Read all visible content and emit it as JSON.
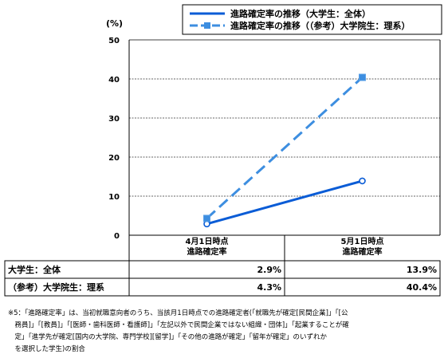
{
  "chart_data": {
    "type": "line",
    "unit_label": "(%)",
    "categories": [
      [
        "4月1日時点",
        "進路確定率"
      ],
      [
        "5月1日時点",
        "進路確定率"
      ]
    ],
    "ylim": [
      0,
      50
    ],
    "yticks": [
      0,
      10,
      20,
      30,
      40,
      50
    ],
    "grid": true,
    "legend_position": "top",
    "series": [
      {
        "name": "進路確定率の推移（大学生：全体）",
        "values": [
          2.9,
          13.9
        ],
        "color": "#0a5cd6",
        "dashed": false,
        "marker": "circle"
      },
      {
        "name": "進路確定率の推移（（参考）大学院生：理系）",
        "values": [
          4.3,
          40.4
        ],
        "color": "#3d8ee0",
        "dashed": true,
        "marker": "square"
      }
    ],
    "table": [
      {
        "label": "大学生：全体",
        "values": [
          "2.9%",
          "13.9%"
        ]
      },
      {
        "label": "（参考）大学院生：理系",
        "values": [
          "4.3%",
          "40.4%"
        ]
      }
    ]
  },
  "footnote": "※5：「進路確定率」は、当初就職意向者のうち、当該月1日時点での進路確定者(「就職先が確定[民間企業]」「[公\n　務員]」「[教員]」「[医師・歯科医師・看護師]」「左記以外で民間企業ではない組織・団体]」「起業することが確\n　定」「進学先が確定[国内の大学院、専門学校][留学]」「その他の進路が確定」「留年が確定」のいずれか\n　を選択した学生)の割合"
}
